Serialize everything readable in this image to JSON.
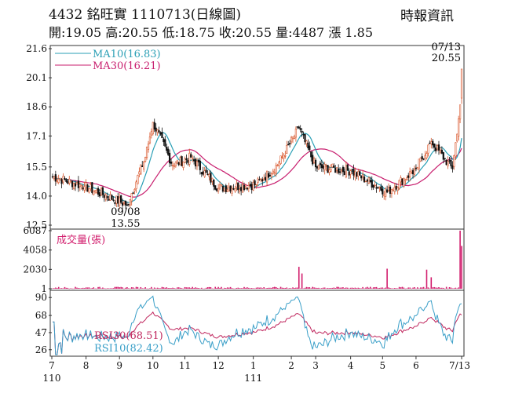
{
  "header": {
    "title": "4432 銘旺實 1110713(日線圖)",
    "ohlc": "開:19.05 高:20.55 低:18.75 收:20.55 量:4487 漲 1.85",
    "source": "時報資訊"
  },
  "colors": {
    "up": "#d9552a",
    "down": "#111111",
    "ma10": "#2a9fb5",
    "ma30": "#c81e6e",
    "volume": "#d21f6e",
    "rsi10": "#3a9fc8",
    "rsi30": "#c0285f",
    "axis": "#333333"
  },
  "chart_data": [
    {
      "type": "candlestick",
      "panel": "price",
      "ylim": [
        12.5,
        21.6
      ],
      "yticks": [
        "21.6",
        "20.1",
        "18.6",
        "17.1",
        "15.5",
        "14.0",
        "12.5"
      ],
      "legend": [
        {
          "label": "MA10(16.83)",
          "color": "#2a9fb5"
        },
        {
          "label": "MA30(16.21)",
          "color": "#c81e6e"
        }
      ],
      "annotations": [
        {
          "text": "07/13",
          "at": "last"
        },
        {
          "text": "20.55",
          "at": "last"
        },
        {
          "text": "09/08",
          "at": "low"
        },
        {
          "text": "13.55",
          "at": "low"
        }
      ],
      "anchor_points": [
        {
          "date": "2021-07-01",
          "close": 15.0
        },
        {
          "date": "2021-08-01",
          "close": 14.5
        },
        {
          "date": "2021-09-08",
          "close": 13.55
        },
        {
          "date": "2021-09-25",
          "close": 16.0
        },
        {
          "date": "2021-10-01",
          "close": 17.8
        },
        {
          "date": "2021-10-20",
          "close": 15.6
        },
        {
          "date": "2021-11-05",
          "close": 16.0
        },
        {
          "date": "2021-12-01",
          "close": 14.4
        },
        {
          "date": "2022-01-05",
          "close": 14.6
        },
        {
          "date": "2022-01-25",
          "close": 15.6
        },
        {
          "date": "2022-02-14",
          "close": 17.5
        },
        {
          "date": "2022-03-01",
          "close": 15.5
        },
        {
          "date": "2022-04-01",
          "close": 15.3
        },
        {
          "date": "2022-05-05",
          "close": 14.2
        },
        {
          "date": "2022-06-01",
          "close": 15.4
        },
        {
          "date": "2022-06-15",
          "close": 16.8
        },
        {
          "date": "2022-07-05",
          "close": 15.4
        },
        {
          "date": "2022-07-12",
          "close": 18.7
        },
        {
          "date": "2022-07-13",
          "close": 20.55
        }
      ]
    },
    {
      "type": "bar",
      "panel": "volume",
      "label": "成交量(張)",
      "ylim": [
        1,
        6087
      ],
      "yticks": [
        "6087",
        "4058",
        "2030",
        "1"
      ],
      "spikes": [
        {
          "date": "2022-02-14",
          "value": 2300
        },
        {
          "date": "2022-02-16",
          "value": 1600
        },
        {
          "date": "2022-05-05",
          "value": 2100
        },
        {
          "date": "2022-06-10",
          "value": 2000
        },
        {
          "date": "2022-06-15",
          "value": 1200
        },
        {
          "date": "2022-07-12",
          "value": 6087
        },
        {
          "date": "2022-07-13",
          "value": 4487
        }
      ]
    },
    {
      "type": "line",
      "panel": "rsi",
      "ylim": [
        20,
        95
      ],
      "yticks": [
        "90",
        "68",
        "47",
        "26"
      ],
      "series": [
        {
          "name": "RSI30(68.51)",
          "color": "#c0285f",
          "last": 68.51
        },
        {
          "name": "RSI10(82.42)",
          "color": "#3a9fc8",
          "last": 82.42
        }
      ]
    }
  ],
  "xaxis": {
    "ticks": [
      "7",
      "8",
      "9",
      "10",
      "11",
      "12",
      "1",
      "2",
      "3",
      "4",
      "5",
      "6",
      "7/13"
    ],
    "year_labels": [
      "110",
      "111"
    ]
  }
}
